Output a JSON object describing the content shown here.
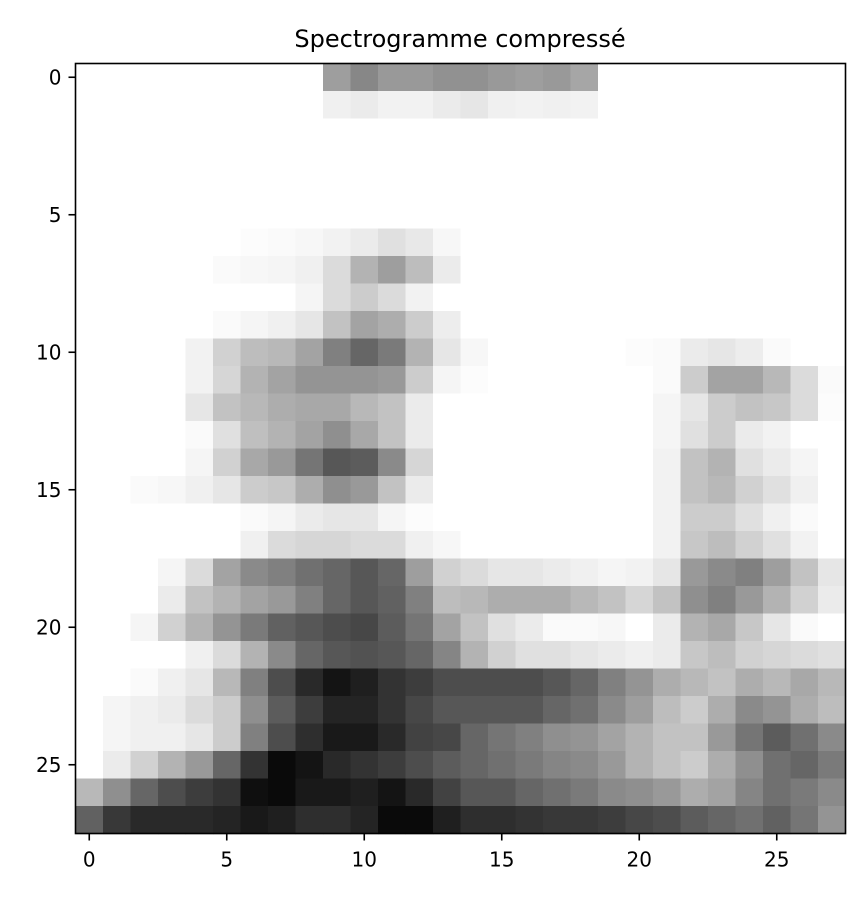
{
  "chart_data": {
    "type": "heatmap",
    "title": "Spectrogramme compressé",
    "colormap": "gray_r",
    "value_range": [
      0,
      1
    ],
    "xlim": [
      -0.5,
      27.5
    ],
    "ylim": [
      27.5,
      -0.5
    ],
    "xticks": [
      0,
      5,
      10,
      15,
      20,
      25
    ],
    "yticks": [
      0,
      5,
      10,
      15,
      20,
      25
    ],
    "xtick_labels": [
      "0",
      "5",
      "10",
      "15",
      "20",
      "25"
    ],
    "ytick_labels": [
      "0",
      "5",
      "10",
      "15",
      "20",
      "25"
    ],
    "xlabel": "",
    "ylabel": "",
    "grid": false,
    "n_rows": 28,
    "n_cols": 28,
    "values": [
      [
        0,
        0,
        0,
        0,
        0,
        0,
        0,
        0,
        0,
        0.38,
        0.47,
        0.4,
        0.4,
        0.43,
        0.43,
        0.4,
        0.38,
        0.4,
        0.35,
        0,
        0,
        0,
        0,
        0,
        0,
        0,
        0,
        0
      ],
      [
        0,
        0,
        0,
        0,
        0,
        0,
        0,
        0,
        0,
        0.06,
        0.08,
        0.05,
        0.05,
        0.08,
        0.1,
        0.06,
        0.05,
        0.06,
        0.05,
        0,
        0,
        0,
        0,
        0,
        0,
        0,
        0,
        0
      ],
      [
        0,
        0,
        0,
        0,
        0,
        0,
        0,
        0,
        0,
        0,
        0,
        0,
        0,
        0,
        0,
        0,
        0,
        0,
        0,
        0,
        0,
        0,
        0,
        0,
        0,
        0,
        0,
        0
      ],
      [
        0,
        0,
        0,
        0,
        0,
        0,
        0,
        0,
        0,
        0,
        0,
        0,
        0,
        0,
        0,
        0,
        0,
        0,
        0,
        0,
        0,
        0,
        0,
        0,
        0,
        0,
        0,
        0
      ],
      [
        0,
        0,
        0,
        0,
        0,
        0,
        0,
        0,
        0,
        0,
        0,
        0,
        0,
        0,
        0,
        0,
        0,
        0,
        0,
        0,
        0,
        0,
        0,
        0,
        0,
        0,
        0,
        0
      ],
      [
        0,
        0,
        0,
        0,
        0,
        0,
        0,
        0,
        0,
        0,
        0,
        0,
        0,
        0,
        0,
        0,
        0,
        0,
        0,
        0,
        0,
        0,
        0,
        0,
        0,
        0,
        0,
        0
      ],
      [
        0,
        0,
        0,
        0,
        0,
        0,
        0.01,
        0.02,
        0.03,
        0.05,
        0.08,
        0.12,
        0.09,
        0.03,
        0,
        0,
        0,
        0,
        0,
        0,
        0,
        0,
        0,
        0,
        0,
        0,
        0,
        0
      ],
      [
        0,
        0,
        0,
        0,
        0,
        0.02,
        0.03,
        0.04,
        0.06,
        0.14,
        0.3,
        0.38,
        0.26,
        0.08,
        0,
        0,
        0,
        0,
        0,
        0,
        0,
        0,
        0,
        0,
        0,
        0,
        0,
        0
      ],
      [
        0,
        0,
        0,
        0,
        0,
        0,
        0,
        0,
        0.04,
        0.14,
        0.2,
        0.14,
        0.05,
        0,
        0,
        0,
        0,
        0,
        0,
        0,
        0,
        0,
        0,
        0,
        0,
        0,
        0,
        0
      ],
      [
        0,
        0,
        0,
        0,
        0,
        0.02,
        0.04,
        0.06,
        0.1,
        0.24,
        0.36,
        0.32,
        0.2,
        0.07,
        0,
        0,
        0,
        0,
        0,
        0,
        0,
        0,
        0,
        0,
        0,
        0,
        0,
        0
      ],
      [
        0,
        0,
        0,
        0,
        0.05,
        0.18,
        0.26,
        0.28,
        0.36,
        0.5,
        0.6,
        0.52,
        0.3,
        0.1,
        0.03,
        0,
        0,
        0,
        0,
        0,
        0.01,
        0.02,
        0.08,
        0.1,
        0.07,
        0.02,
        0,
        0
      ],
      [
        0,
        0,
        0,
        0,
        0.05,
        0.16,
        0.3,
        0.36,
        0.42,
        0.42,
        0.42,
        0.4,
        0.2,
        0.04,
        0.01,
        0,
        0,
        0,
        0,
        0,
        0,
        0.02,
        0.2,
        0.36,
        0.36,
        0.28,
        0.14,
        0.02
      ],
      [
        0,
        0,
        0,
        0,
        0.1,
        0.24,
        0.28,
        0.32,
        0.34,
        0.34,
        0.28,
        0.24,
        0.08,
        0,
        0,
        0,
        0,
        0,
        0,
        0,
        0,
        0.04,
        0.1,
        0.2,
        0.24,
        0.22,
        0.14,
        0.01
      ],
      [
        0,
        0,
        0,
        0,
        0.02,
        0.12,
        0.25,
        0.3,
        0.36,
        0.44,
        0.34,
        0.24,
        0.08,
        0,
        0,
        0,
        0,
        0,
        0,
        0,
        0,
        0.04,
        0.12,
        0.2,
        0.08,
        0.05,
        0,
        0
      ],
      [
        0,
        0,
        0,
        0,
        0.04,
        0.18,
        0.34,
        0.4,
        0.54,
        0.66,
        0.64,
        0.46,
        0.16,
        0,
        0,
        0,
        0,
        0,
        0,
        0,
        0,
        0.05,
        0.24,
        0.3,
        0.12,
        0.08,
        0.04,
        0
      ],
      [
        0,
        0,
        0.02,
        0.03,
        0.06,
        0.1,
        0.2,
        0.22,
        0.32,
        0.44,
        0.4,
        0.24,
        0.08,
        0,
        0,
        0,
        0,
        0,
        0,
        0,
        0,
        0.05,
        0.24,
        0.28,
        0.18,
        0.12,
        0.06,
        0
      ],
      [
        0,
        0,
        0,
        0,
        0,
        0,
        0.02,
        0.04,
        0.08,
        0.1,
        0.1,
        0.04,
        0.01,
        0,
        0,
        0,
        0,
        0,
        0,
        0,
        0,
        0.05,
        0.2,
        0.2,
        0.12,
        0.06,
        0.02,
        0
      ],
      [
        0,
        0,
        0,
        0,
        0,
        0,
        0.06,
        0.14,
        0.16,
        0.16,
        0.14,
        0.14,
        0.06,
        0.03,
        0,
        0,
        0,
        0,
        0,
        0,
        0,
        0.05,
        0.22,
        0.26,
        0.18,
        0.12,
        0.05,
        0
      ],
      [
        0,
        0,
        0,
        0.04,
        0.14,
        0.36,
        0.46,
        0.5,
        0.56,
        0.6,
        0.66,
        0.6,
        0.38,
        0.18,
        0.14,
        0.1,
        0.1,
        0.08,
        0.06,
        0.04,
        0.05,
        0.1,
        0.4,
        0.46,
        0.5,
        0.38,
        0.24,
        0.1
      ],
      [
        0,
        0,
        0,
        0.08,
        0.24,
        0.3,
        0.36,
        0.4,
        0.5,
        0.6,
        0.66,
        0.62,
        0.5,
        0.26,
        0.28,
        0.32,
        0.32,
        0.32,
        0.28,
        0.24,
        0.16,
        0.24,
        0.44,
        0.5,
        0.4,
        0.3,
        0.18,
        0.08
      ],
      [
        0,
        0,
        0.04,
        0.18,
        0.3,
        0.42,
        0.52,
        0.62,
        0.66,
        0.7,
        0.72,
        0.64,
        0.54,
        0.36,
        0.24,
        0.12,
        0.08,
        0.02,
        0.02,
        0.03,
        0,
        0.08,
        0.3,
        0.34,
        0.22,
        0.1,
        0.02,
        0
      ],
      [
        0,
        0,
        0,
        0,
        0.06,
        0.14,
        0.3,
        0.46,
        0.6,
        0.66,
        0.68,
        0.66,
        0.6,
        0.48,
        0.3,
        0.18,
        0.12,
        0.12,
        0.1,
        0.08,
        0.06,
        0.08,
        0.22,
        0.26,
        0.18,
        0.16,
        0.14,
        0.12
      ],
      [
        0,
        0,
        0.02,
        0.06,
        0.1,
        0.28,
        0.5,
        0.7,
        0.84,
        0.92,
        0.88,
        0.8,
        0.76,
        0.7,
        0.7,
        0.7,
        0.7,
        0.66,
        0.6,
        0.5,
        0.42,
        0.32,
        0.28,
        0.24,
        0.32,
        0.28,
        0.34,
        0.28
      ],
      [
        0,
        0.04,
        0.06,
        0.08,
        0.14,
        0.2,
        0.44,
        0.64,
        0.76,
        0.86,
        0.86,
        0.8,
        0.72,
        0.66,
        0.66,
        0.66,
        0.66,
        0.6,
        0.56,
        0.46,
        0.38,
        0.26,
        0.2,
        0.32,
        0.46,
        0.42,
        0.32,
        0.26
      ],
      [
        0,
        0.04,
        0.06,
        0.06,
        0.1,
        0.2,
        0.5,
        0.7,
        0.82,
        0.9,
        0.9,
        0.84,
        0.74,
        0.72,
        0.6,
        0.54,
        0.5,
        0.44,
        0.42,
        0.36,
        0.3,
        0.24,
        0.24,
        0.4,
        0.54,
        0.64,
        0.56,
        0.46
      ],
      [
        0,
        0.08,
        0.18,
        0.3,
        0.4,
        0.6,
        0.8,
        0.96,
        0.92,
        0.84,
        0.8,
        0.76,
        0.7,
        0.64,
        0.6,
        0.56,
        0.52,
        0.48,
        0.46,
        0.4,
        0.3,
        0.24,
        0.2,
        0.32,
        0.44,
        0.56,
        0.6,
        0.52
      ],
      [
        0.28,
        0.44,
        0.6,
        0.7,
        0.76,
        0.8,
        0.94,
        0.96,
        0.9,
        0.9,
        0.88,
        0.92,
        0.84,
        0.74,
        0.66,
        0.66,
        0.6,
        0.56,
        0.52,
        0.46,
        0.44,
        0.4,
        0.32,
        0.36,
        0.48,
        0.56,
        0.52,
        0.46
      ],
      [
        0.62,
        0.78,
        0.84,
        0.84,
        0.84,
        0.86,
        0.9,
        0.88,
        0.82,
        0.82,
        0.86,
        0.96,
        0.96,
        0.88,
        0.82,
        0.82,
        0.8,
        0.78,
        0.78,
        0.76,
        0.72,
        0.7,
        0.64,
        0.6,
        0.56,
        0.62,
        0.54,
        0.42
      ]
    ]
  }
}
